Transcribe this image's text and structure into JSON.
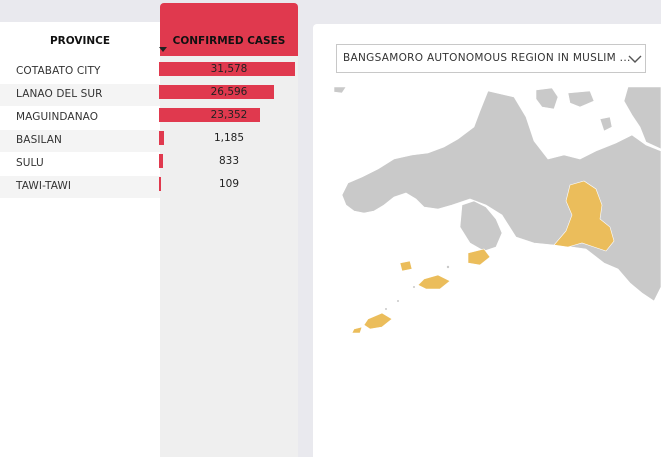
{
  "table": {
    "header_province": "PROVINCE",
    "header_cases": "CONFIRMED CASES",
    "max_cases": 31578,
    "bar_color": "#e0394e",
    "rows": [
      {
        "province": "COTABATO CITY",
        "cases": 31578,
        "cases_label": "31,578"
      },
      {
        "province": "LANAO DEL SUR",
        "cases": 26596,
        "cases_label": "26,596"
      },
      {
        "province": "MAGUINDANAO",
        "cases": 23352,
        "cases_label": "23,352"
      },
      {
        "province": "BASILAN",
        "cases": 1185,
        "cases_label": "1,185"
      },
      {
        "province": "SULU",
        "cases": 833,
        "cases_label": "833"
      },
      {
        "province": "TAWI-TAWI",
        "cases": 109,
        "cases_label": "109"
      }
    ]
  },
  "region_filter": {
    "selected": "BANGSAMORO AUTONOMOUS REGION IN MUSLIM ..."
  },
  "map": {
    "highlight_color": "#ebbd5b",
    "land_color": "#c9c9c9"
  }
}
